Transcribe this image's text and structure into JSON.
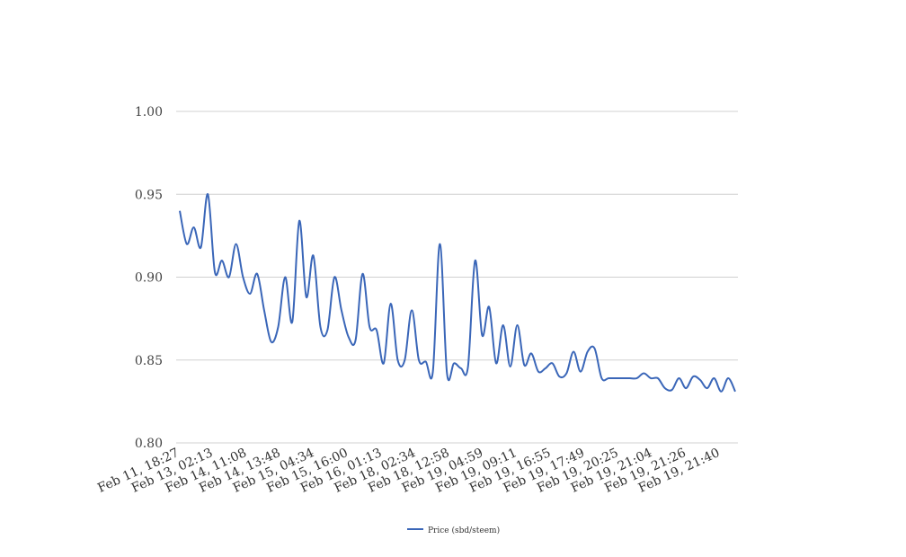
{
  "chart_data": {
    "type": "line",
    "title": "",
    "xlabel": "",
    "ylabel": "",
    "ylim": [
      0.8,
      1.0
    ],
    "y_ticks": [
      "0.80",
      "0.85",
      "0.90",
      "0.95",
      "1.00"
    ],
    "x_tick_labels": [
      "Feb 11, 18:27",
      "Feb 13, 02:13",
      "Feb 14, 11:08",
      "Feb 14, 13:48",
      "Feb 15, 04:34",
      "Feb 15, 16:00",
      "Feb 16, 01:13",
      "Feb 18, 02:34",
      "Feb 18, 12:58",
      "Feb 19, 04:59",
      "Feb 19, 09:11",
      "Feb 19, 16:55",
      "Feb 19, 17:49",
      "Feb 19, 20:25",
      "Feb 19, 21:04",
      "Feb 19, 21:26",
      "Feb 19, 21:40"
    ],
    "grid": true,
    "legend_position": "bottom",
    "series": [
      {
        "name": "Price (sbd/steem)",
        "color": "#3a66b8",
        "values": [
          0.94,
          0.92,
          0.93,
          0.918,
          0.95,
          0.903,
          0.91,
          0.9,
          0.92,
          0.9,
          0.89,
          0.902,
          0.88,
          0.861,
          0.87,
          0.9,
          0.873,
          0.934,
          0.888,
          0.913,
          0.87,
          0.868,
          0.9,
          0.88,
          0.864,
          0.862,
          0.902,
          0.87,
          0.868,
          0.848,
          0.884,
          0.85,
          0.85,
          0.88,
          0.85,
          0.849,
          0.843,
          0.92,
          0.842,
          0.848,
          0.845,
          0.846,
          0.91,
          0.865,
          0.882,
          0.848,
          0.871,
          0.846,
          0.871,
          0.847,
          0.854,
          0.843,
          0.845,
          0.848,
          0.84,
          0.842,
          0.855,
          0.843,
          0.855,
          0.857,
          0.839,
          0.839,
          0.839,
          0.839,
          0.839,
          0.839,
          0.842,
          0.839,
          0.839,
          0.833,
          0.832,
          0.839,
          0.833,
          0.84,
          0.838,
          0.833,
          0.839,
          0.831,
          0.839,
          0.831
        ]
      }
    ]
  }
}
